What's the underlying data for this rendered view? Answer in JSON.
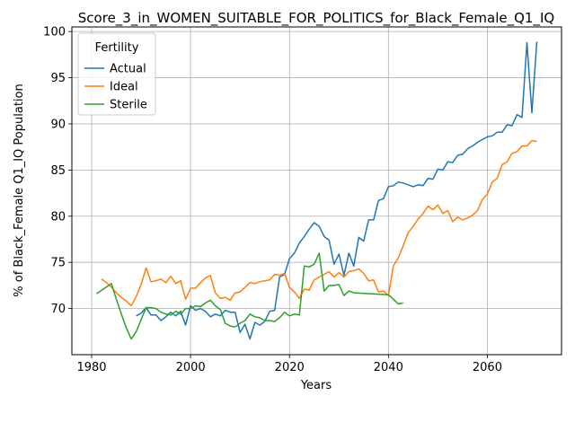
{
  "chart_data": {
    "type": "line",
    "title": "Score_3_in_WOMEN_SUITABLE_FOR_POLITICS_for_Black_Female_Q1_IQ",
    "xlabel": "Years",
    "ylabel": "% of Black_Female Q1_IQ Population",
    "xlim": [
      1976,
      2075
    ],
    "ylim": [
      65,
      100.5
    ],
    "xticks": [
      1980,
      2000,
      2020,
      2040,
      2060
    ],
    "yticks": [
      70,
      75,
      80,
      85,
      90,
      95,
      100
    ],
    "grid": true,
    "legend": {
      "title": "Fertility",
      "position": "top-left"
    },
    "series": [
      {
        "name": "Actual",
        "color": "#1f77b4",
        "x": [
          1989,
          1990,
          1991,
          1992,
          1993,
          1994,
          1995,
          1996,
          1997,
          1998,
          1999,
          2000,
          2001,
          2002,
          2003,
          2004,
          2005,
          2006,
          2007,
          2008,
          2009,
          2010,
          2011,
          2012,
          2013,
          2014,
          2015,
          2016,
          2017,
          2018,
          2019,
          2020,
          2021,
          2022,
          2023,
          2024,
          2025,
          2026,
          2027,
          2028,
          2029,
          2030,
          2031,
          2032,
          2033,
          2034,
          2035,
          2036,
          2037,
          2038,
          2039,
          2040,
          2041,
          2042,
          2043,
          2044,
          2045,
          2046,
          2047,
          2048,
          2049,
          2050,
          2051,
          2052,
          2053,
          2054,
          2055,
          2056,
          2057,
          2058,
          2059,
          2060,
          2061,
          2062,
          2063,
          2064,
          2065,
          2066,
          2067,
          2068,
          2069,
          2070
        ],
        "values": [
          69.2,
          69.5,
          70.1,
          69.3,
          69.3,
          68.7,
          69.1,
          69.6,
          69.2,
          69.7,
          68.2,
          70.3,
          69.8,
          70.0,
          69.7,
          69.1,
          69.4,
          69.2,
          69.8,
          69.6,
          69.6,
          67.4,
          68.3,
          66.7,
          68.5,
          68.2,
          68.6,
          69.7,
          69.8,
          73.4,
          73.7,
          75.4,
          76.0,
          77.1,
          77.8,
          78.6,
          79.3,
          78.9,
          77.8,
          77.4,
          74.8,
          75.9,
          73.6,
          76.0,
          74.6,
          77.7,
          77.3,
          79.6,
          79.6,
          81.7,
          81.9,
          83.2,
          83.3,
          83.7,
          83.6,
          83.4,
          83.2,
          83.4,
          83.3,
          84.1,
          84.0,
          85.1,
          85.0,
          85.9,
          85.8,
          86.6,
          86.7,
          87.3,
          87.6,
          88.0,
          88.3,
          88.6,
          88.7,
          89.1,
          89.1,
          89.9,
          89.8,
          91.0,
          90.7,
          98.8,
          91.2,
          98.9
        ]
      },
      {
        "name": "Ideal",
        "color": "#ff7f0e",
        "x": [
          1982,
          1983,
          1984,
          1985,
          1986,
          1987,
          1988,
          1989,
          1990,
          1991,
          1992,
          1993,
          1994,
          1995,
          1996,
          1997,
          1998,
          1999,
          2000,
          2001,
          2002,
          2003,
          2004,
          2005,
          2006,
          2007,
          2008,
          2009,
          2010,
          2011,
          2012,
          2013,
          2014,
          2015,
          2016,
          2017,
          2018,
          2019,
          2020,
          2021,
          2022,
          2023,
          2024,
          2025,
          2026,
          2027,
          2028,
          2029,
          2030,
          2031,
          2032,
          2033,
          2034,
          2035,
          2036,
          2037,
          2038,
          2039,
          2040,
          2041,
          2042,
          2043,
          2044,
          2045,
          2046,
          2047,
          2048,
          2049,
          2050,
          2051,
          2052,
          2053,
          2054,
          2055,
          2056,
          2057,
          2058,
          2059,
          2060,
          2061,
          2062,
          2063,
          2064,
          2065,
          2066,
          2067,
          2068,
          2069,
          2070
        ],
        "values": [
          73.2,
          72.8,
          72.3,
          71.7,
          71.2,
          70.8,
          70.3,
          71.3,
          72.6,
          74.4,
          72.9,
          73.0,
          73.2,
          72.8,
          73.5,
          72.7,
          73.0,
          71.0,
          72.2,
          72.2,
          72.8,
          73.3,
          73.6,
          71.7,
          71.1,
          71.2,
          70.9,
          71.7,
          71.8,
          72.3,
          72.8,
          72.7,
          72.9,
          73.0,
          73.1,
          73.7,
          73.6,
          73.8,
          72.3,
          71.8,
          71.1,
          72.1,
          72.0,
          73.1,
          73.4,
          73.7,
          74.0,
          73.4,
          73.9,
          73.4,
          74.0,
          74.1,
          74.3,
          73.8,
          73.0,
          73.1,
          71.8,
          71.9,
          71.4,
          74.6,
          75.5,
          76.8,
          78.2,
          78.9,
          79.7,
          80.3,
          81.1,
          80.7,
          81.2,
          80.3,
          80.6,
          79.4,
          79.9,
          79.6,
          79.8,
          80.1,
          80.6,
          81.8,
          82.4,
          83.7,
          84.1,
          85.6,
          85.9,
          86.8,
          87.0,
          87.6,
          87.6,
          88.2,
          88.1
        ]
      },
      {
        "name": "Sterile",
        "color": "#2ca02c",
        "x": [
          1981,
          1984,
          1985,
          1986,
          1987,
          1988,
          1989,
          1990,
          1991,
          1992,
          1993,
          1994,
          1995,
          1996,
          1997,
          1998,
          1999,
          2000,
          2001,
          2002,
          2003,
          2004,
          2005,
          2006,
          2007,
          2008,
          2009,
          2010,
          2011,
          2012,
          2013,
          2014,
          2015,
          2016,
          2017,
          2018,
          2019,
          2020,
          2021,
          2022,
          2023,
          2024,
          2025,
          2026,
          2027,
          2028,
          2029,
          2030,
          2031,
          2032,
          2033,
          2040,
          2041,
          2042,
          2043
        ],
        "values": [
          71.6,
          72.7,
          71.0,
          69.4,
          67.9,
          66.7,
          67.5,
          68.8,
          70.1,
          70.1,
          70.0,
          69.6,
          69.4,
          69.3,
          69.7,
          69.4,
          70.0,
          70.0,
          70.3,
          70.2,
          70.6,
          70.9,
          70.3,
          69.9,
          68.4,
          68.1,
          68.0,
          68.4,
          68.7,
          69.4,
          69.1,
          69.0,
          68.7,
          68.7,
          68.6,
          69.0,
          69.6,
          69.2,
          69.4,
          69.3,
          74.6,
          74.5,
          74.8,
          76.0,
          71.9,
          72.5,
          72.5,
          72.6,
          71.4,
          71.9,
          71.7,
          71.5,
          71.0,
          70.5,
          70.6
        ]
      }
    ]
  }
}
